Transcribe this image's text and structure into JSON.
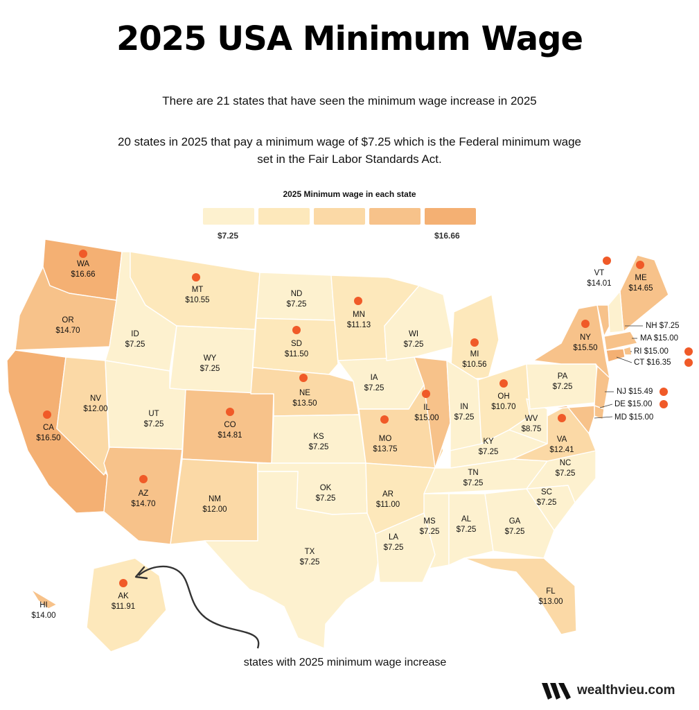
{
  "title": "2025 USA Minimum Wage",
  "subtitle1": "There are 21 states that have seen the minimum wage increase in 2025",
  "subtitle2_line1": "20 states in 2025 that pay a minimum wage of $7.25 which is the Federal minimum wage",
  "subtitle2_line2": "set in the Fair Labor Standards Act.",
  "legend": {
    "title": "2025 Minimum wage in each state",
    "min_label": "$7.25",
    "max_label": "$16.66",
    "colors": [
      "#fdf1cf",
      "#fde8bb",
      "#fbd9a6",
      "#f7c28a",
      "#f4b073"
    ]
  },
  "annotation": "states with 2025 minimum wage increase",
  "brand": "wealthvieu.com",
  "colors": {
    "dot": "#f05a28"
  },
  "states": [
    {
      "abbr": "WA",
      "wage": "$16.66",
      "value": 16.66,
      "increase": true
    },
    {
      "abbr": "OR",
      "wage": "$14.70",
      "value": 14.7,
      "increase": false
    },
    {
      "abbr": "CA",
      "wage": "$16.50",
      "value": 16.5,
      "increase": true
    },
    {
      "abbr": "NV",
      "wage": "$12.00",
      "value": 12.0,
      "increase": false
    },
    {
      "abbr": "ID",
      "wage": "$7.25",
      "value": 7.25,
      "increase": false
    },
    {
      "abbr": "MT",
      "wage": "$10.55",
      "value": 10.55,
      "increase": true
    },
    {
      "abbr": "WY",
      "wage": "$7.25",
      "value": 7.25,
      "increase": false
    },
    {
      "abbr": "UT",
      "wage": "$7.25",
      "value": 7.25,
      "increase": false
    },
    {
      "abbr": "AZ",
      "wage": "$14.70",
      "value": 14.7,
      "increase": true
    },
    {
      "abbr": "CO",
      "wage": "$14.81",
      "value": 14.81,
      "increase": true
    },
    {
      "abbr": "NM",
      "wage": "$12.00",
      "value": 12.0,
      "increase": false
    },
    {
      "abbr": "ND",
      "wage": "$7.25",
      "value": 7.25,
      "increase": false
    },
    {
      "abbr": "SD",
      "wage": "$11.50",
      "value": 11.5,
      "increase": true
    },
    {
      "abbr": "NE",
      "wage": "$13.50",
      "value": 13.5,
      "increase": true
    },
    {
      "abbr": "KS",
      "wage": "$7.25",
      "value": 7.25,
      "increase": false
    },
    {
      "abbr": "OK",
      "wage": "$7.25",
      "value": 7.25,
      "increase": false
    },
    {
      "abbr": "TX",
      "wage": "$7.25",
      "value": 7.25,
      "increase": false
    },
    {
      "abbr": "MN",
      "wage": "$11.13",
      "value": 11.13,
      "increase": true
    },
    {
      "abbr": "IA",
      "wage": "$7.25",
      "value": 7.25,
      "increase": false
    },
    {
      "abbr": "MO",
      "wage": "$13.75",
      "value": 13.75,
      "increase": true
    },
    {
      "abbr": "AR",
      "wage": "$11.00",
      "value": 11.0,
      "increase": false
    },
    {
      "abbr": "LA",
      "wage": "$7.25",
      "value": 7.25,
      "increase": false
    },
    {
      "abbr": "WI",
      "wage": "$7.25",
      "value": 7.25,
      "increase": false
    },
    {
      "abbr": "IL",
      "wage": "$15.00",
      "value": 15.0,
      "increase": true
    },
    {
      "abbr": "MI",
      "wage": "$10.56",
      "value": 10.56,
      "increase": true
    },
    {
      "abbr": "IN",
      "wage": "$7.25",
      "value": 7.25,
      "increase": false
    },
    {
      "abbr": "OH",
      "wage": "$10.70",
      "value": 10.7,
      "increase": true
    },
    {
      "abbr": "KY",
      "wage": "$7.25",
      "value": 7.25,
      "increase": false
    },
    {
      "abbr": "TN",
      "wage": "$7.25",
      "value": 7.25,
      "increase": false
    },
    {
      "abbr": "MS",
      "wage": "$7.25",
      "value": 7.25,
      "increase": false
    },
    {
      "abbr": "AL",
      "wage": "$7.25",
      "value": 7.25,
      "increase": false
    },
    {
      "abbr": "GA",
      "wage": "$7.25",
      "value": 7.25,
      "increase": false
    },
    {
      "abbr": "FL",
      "wage": "$13.00",
      "value": 13.0,
      "increase": false
    },
    {
      "abbr": "SC",
      "wage": "$7.25",
      "value": 7.25,
      "increase": false
    },
    {
      "abbr": "NC",
      "wage": "$7.25",
      "value": 7.25,
      "increase": false
    },
    {
      "abbr": "VA",
      "wage": "$12.41",
      "value": 12.41,
      "increase": true
    },
    {
      "abbr": "WV",
      "wage": "$8.75",
      "value": 8.75,
      "increase": false
    },
    {
      "abbr": "PA",
      "wage": "$7.25",
      "value": 7.25,
      "increase": false
    },
    {
      "abbr": "NY",
      "wage": "$15.50",
      "value": 15.5,
      "increase": true
    },
    {
      "abbr": "VT",
      "wage": "$14.01",
      "value": 14.01,
      "increase": true
    },
    {
      "abbr": "ME",
      "wage": "$14.65",
      "value": 14.65,
      "increase": true
    },
    {
      "abbr": "NH",
      "wage": "$7.25",
      "value": 7.25,
      "increase": false
    },
    {
      "abbr": "MA",
      "wage": "$15.00",
      "value": 15.0,
      "increase": false
    },
    {
      "abbr": "RI",
      "wage": "$15.00",
      "value": 15.0,
      "increase": true
    },
    {
      "abbr": "CT",
      "wage": "$16.35",
      "value": 16.35,
      "increase": true
    },
    {
      "abbr": "NJ",
      "wage": "$15.49",
      "value": 15.49,
      "increase": true
    },
    {
      "abbr": "DE",
      "wage": "$15.00",
      "value": 15.0,
      "increase": true
    },
    {
      "abbr": "MD",
      "wage": "$15.00",
      "value": 15.0,
      "increase": false
    },
    {
      "abbr": "AK",
      "wage": "$11.91",
      "value": 11.91,
      "increase": true
    },
    {
      "abbr": "HI",
      "wage": "$14.00",
      "value": 14.0,
      "increase": false
    }
  ]
}
